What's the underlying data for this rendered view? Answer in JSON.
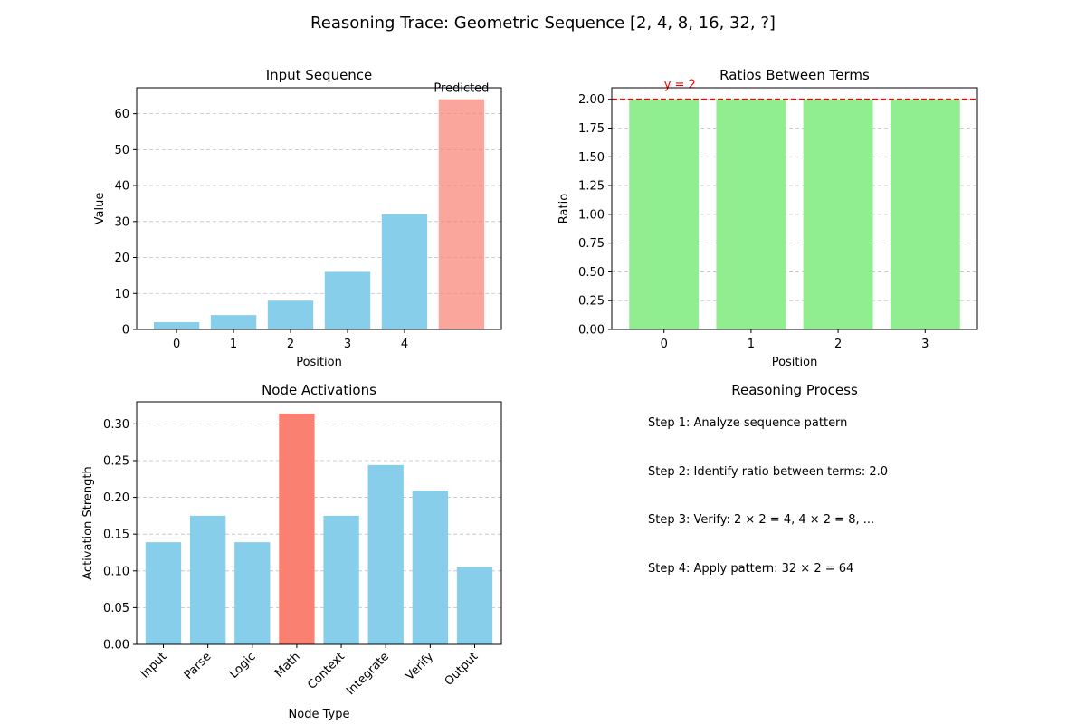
{
  "figure": {
    "title": "Reasoning Trace: Geometric Sequence [2, 4, 8, 16, 32, ?]"
  },
  "chart_data": [
    {
      "id": "input_sequence",
      "type": "bar",
      "title": "Input Sequence",
      "xlabel": "Position",
      "ylabel": "Value",
      "x": [
        0,
        1,
        2,
        3,
        4,
        5
      ],
      "xtick_labels": [
        "0",
        "1",
        "2",
        "3",
        "4"
      ],
      "values": [
        2,
        4,
        8,
        16,
        32,
        64
      ],
      "colors": [
        "#87ceeb",
        "#87ceeb",
        "#87ceeb",
        "#87ceeb",
        "#87ceeb",
        "#fa8072"
      ],
      "predicted_index": 5,
      "predicted_alpha": 0.7,
      "annotation": "Predicted",
      "ylim": [
        0,
        67.2
      ],
      "yticks": [
        0,
        10,
        20,
        30,
        40,
        50,
        60
      ],
      "grid": "y"
    },
    {
      "id": "ratios",
      "type": "bar",
      "title": "Ratios Between Terms",
      "xlabel": "Position",
      "ylabel": "Ratio",
      "x": [
        0,
        1,
        2,
        3
      ],
      "xtick_labels": [
        "0",
        "1",
        "2",
        "3"
      ],
      "values": [
        2.0,
        2.0,
        2.0,
        2.0
      ],
      "color": "#90ee90",
      "reference_line": {
        "y": 2,
        "label": "y = 2",
        "color": "#ff0000"
      },
      "ylim": [
        0,
        2.1
      ],
      "yticks": [
        "0.00",
        "0.25",
        "0.50",
        "0.75",
        "1.00",
        "1.25",
        "1.50",
        "1.75",
        "2.00"
      ],
      "grid": "y"
    },
    {
      "id": "node_activations",
      "type": "bar",
      "title": "Node Activations",
      "xlabel": "Node Type",
      "ylabel": "Activation Strength",
      "categories": [
        "Input",
        "Parse",
        "Logic",
        "Math",
        "Context",
        "Integrate",
        "Verify",
        "Output"
      ],
      "values": [
        0.139,
        0.175,
        0.139,
        0.314,
        0.175,
        0.244,
        0.209,
        0.105
      ],
      "colors": [
        "#87ceeb",
        "#87ceeb",
        "#87ceeb",
        "#fa8072",
        "#87ceeb",
        "#87ceeb",
        "#87ceeb",
        "#87ceeb"
      ],
      "ylim": [
        0,
        0.33
      ],
      "yticks": [
        "0.00",
        "0.05",
        "0.10",
        "0.15",
        "0.20",
        "0.25",
        "0.30"
      ],
      "grid": "y"
    }
  ],
  "reasoning": {
    "title": "Reasoning Process",
    "steps": [
      "Step 1: Analyze sequence pattern",
      "Step 2: Identify ratio between terms: 2.0",
      "Step 3: Verify: 2 × 2 = 4, 4 × 2 = 8, ...",
      "Step 4: Apply pattern: 32 × 2 = 64"
    ]
  }
}
